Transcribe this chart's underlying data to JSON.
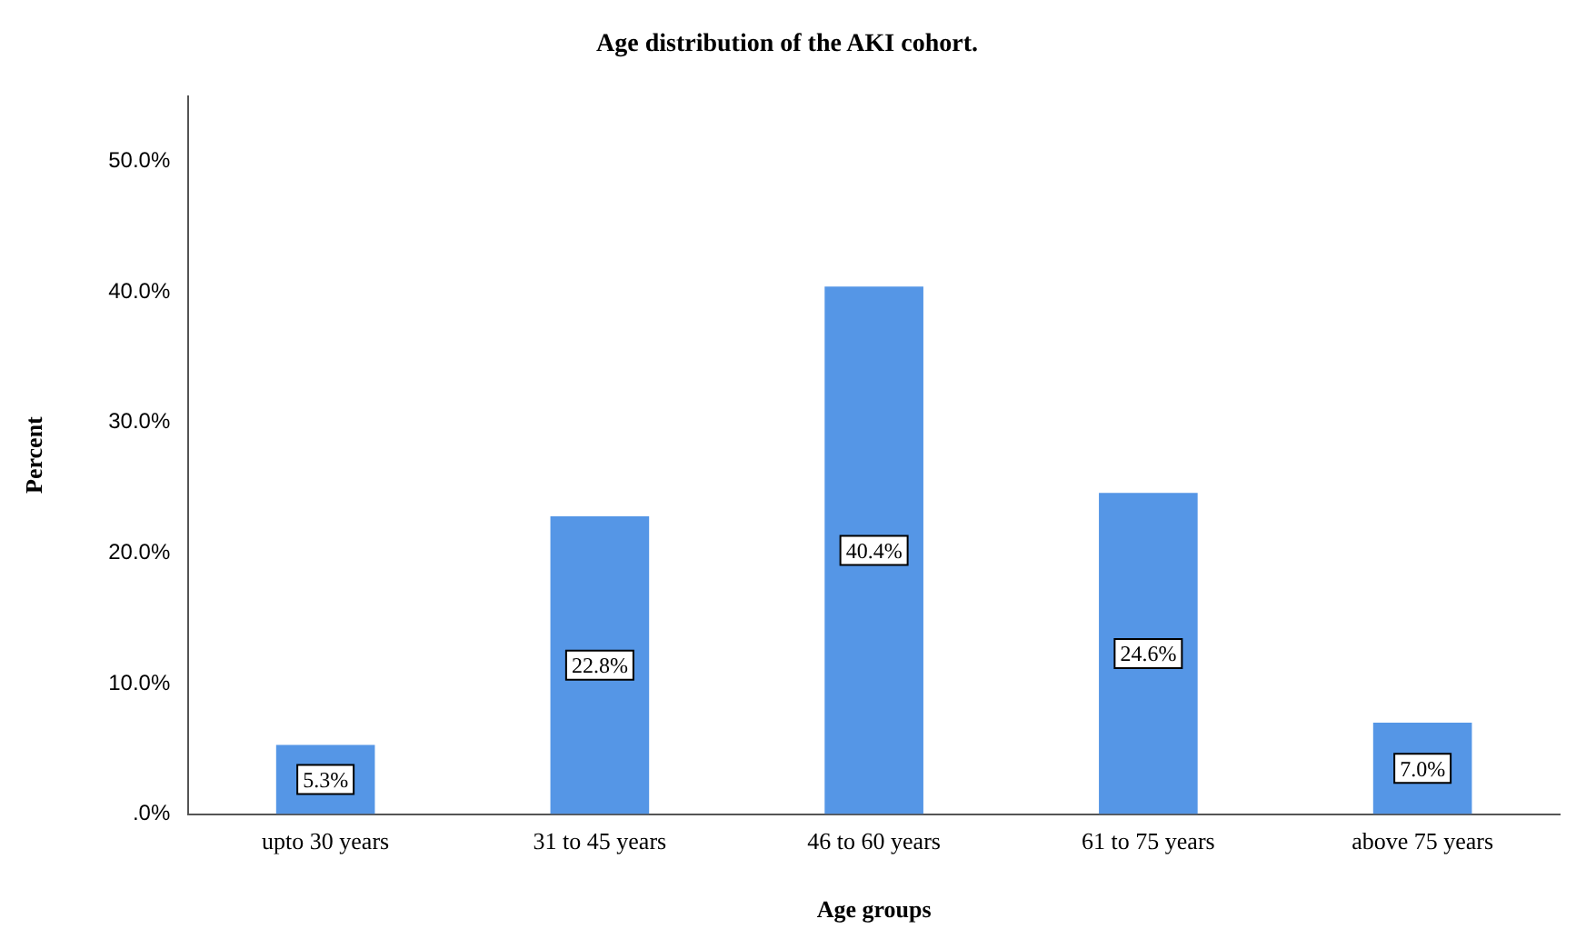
{
  "chart_data": {
    "type": "bar",
    "title": "Age distribution of the AKI cohort.",
    "xlabel": "Age groups",
    "ylabel": "Percent",
    "categories": [
      "upto 30 years",
      "31 to 45 years",
      "46 to 60 years",
      "61 to 75 years",
      "above 75 years"
    ],
    "values": [
      5.3,
      22.8,
      40.4,
      24.6,
      7.0
    ],
    "value_labels": [
      "5.3%",
      "22.8%",
      "40.4%",
      "24.6%",
      "7.0%"
    ],
    "color": "#5596e6",
    "ylim": [
      0,
      55
    ],
    "yticks": [
      {
        "value": 0,
        "label": ".0%"
      },
      {
        "value": 10,
        "label": "10.0%"
      },
      {
        "value": 20,
        "label": "20.0%"
      },
      {
        "value": 30,
        "label": "30.0%"
      },
      {
        "value": 40,
        "label": "40.0%"
      },
      {
        "value": 50,
        "label": "50.0%"
      }
    ],
    "grid": false,
    "legend": false
  }
}
